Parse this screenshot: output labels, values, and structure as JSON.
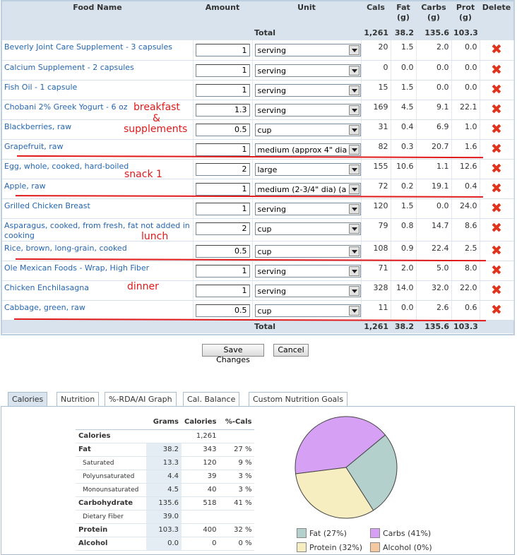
{
  "table": {
    "headers": {
      "food_name": "Food Name",
      "amount": "Amount",
      "unit": "Unit",
      "cals": "Cals",
      "fat": "Fat\n(g)",
      "carbs": "Carbs\n(g)",
      "prot": "Prot\n(g)",
      "delete": "Delete"
    },
    "total_label": "Total",
    "totals": {
      "cals": "1,261",
      "fat": "38.2",
      "carbs": "135.6",
      "prot": "103.3"
    },
    "rows": [
      {
        "name": "Beverly Joint Care Supplement - 3 capsules",
        "amount": "1",
        "unit": "serving",
        "cals": "20",
        "fat": "1.5",
        "carbs": "2.0",
        "prot": "0.0"
      },
      {
        "name": "Calcium Supplement - 2 capsules",
        "amount": "1",
        "unit": "serving",
        "cals": "0",
        "fat": "0.0",
        "carbs": "0.0",
        "prot": "0.0"
      },
      {
        "name": "Fish Oil - 1 capsule",
        "amount": "1",
        "unit": "serving",
        "cals": "15",
        "fat": "1.5",
        "carbs": "0.0",
        "prot": "0.0"
      },
      {
        "name": "Chobani 2% Greek Yogurt - 6 oz",
        "amount": "1.3",
        "unit": "serving",
        "cals": "169",
        "fat": "4.5",
        "carbs": "9.1",
        "prot": "22.1"
      },
      {
        "name": "Blackberries, raw",
        "amount": "0.5",
        "unit": "cup",
        "cals": "31",
        "fat": "0.4",
        "carbs": "6.9",
        "prot": "1.0"
      },
      {
        "name": "Grapefruit, raw",
        "amount": "1",
        "unit": "medium (approx 4\" dia",
        "cals": "82",
        "fat": "0.3",
        "carbs": "20.7",
        "prot": "1.6"
      },
      {
        "name": "Egg, whole, cooked, hard-boiled",
        "amount": "2",
        "unit": "large",
        "cals": "155",
        "fat": "10.6",
        "carbs": "1.1",
        "prot": "12.6"
      },
      {
        "name": "Apple, raw",
        "amount": "1",
        "unit": "medium (2-3/4\" dia) (a",
        "cals": "72",
        "fat": "0.2",
        "carbs": "19.1",
        "prot": "0.4"
      },
      {
        "name": "Grilled Chicken Breast",
        "amount": "1",
        "unit": "serving",
        "cals": "120",
        "fat": "1.5",
        "carbs": "0.0",
        "prot": "24.0"
      },
      {
        "name": "Asparagus, cooked, from fresh, fat not added in cooking",
        "amount": "2",
        "unit": "cup",
        "cals": "79",
        "fat": "0.8",
        "carbs": "14.7",
        "prot": "8.6"
      },
      {
        "name": "Rice, brown, long-grain, cooked",
        "amount": "0.5",
        "unit": "cup",
        "cals": "108",
        "fat": "0.9",
        "carbs": "22.4",
        "prot": "2.5"
      },
      {
        "name": "Ole Mexican Foods - Wrap, High Fiber",
        "amount": "1",
        "unit": "serving",
        "cals": "71",
        "fat": "2.0",
        "carbs": "5.0",
        "prot": "8.0"
      },
      {
        "name": "Chicken Enchilasagna",
        "amount": "1",
        "unit": "serving",
        "cals": "328",
        "fat": "14.0",
        "carbs": "32.0",
        "prot": "22.0"
      },
      {
        "name": "Cabbage, green, raw",
        "amount": "0.5",
        "unit": "cup",
        "cals": "11",
        "fat": "0.0",
        "carbs": "2.6",
        "prot": "0.6"
      }
    ],
    "delete_icon": "close-x-icon"
  },
  "annotations": {
    "breakfast": "breakfast",
    "ampersand": "&",
    "supplements": "supplements",
    "snack": "snack 1",
    "lunch": "lunch",
    "dinner": "dinner",
    "color": "#e01a1a"
  },
  "buttons": {
    "save": "Save Changes",
    "cancel": "Cancel"
  },
  "tabs": [
    "Calories",
    "Nutrition",
    "%-RDA/AI Graph",
    "Cal. Balance",
    "Custom Nutrition Goals"
  ],
  "nutrition": {
    "headers": {
      "grams": "Grams",
      "calories": "Calories",
      "pct": "%-Cals"
    },
    "rows": [
      {
        "label": "Calories",
        "grams": "",
        "calories": "1,261",
        "pct": "",
        "sub": false
      },
      {
        "label": "Fat",
        "grams": "38.2",
        "calories": "343",
        "pct": "27 %",
        "sub": false
      },
      {
        "label": "Saturated",
        "grams": "13.3",
        "calories": "120",
        "pct": "9 %",
        "sub": true
      },
      {
        "label": "Polyunsaturated",
        "grams": "4.4",
        "calories": "39",
        "pct": "3 %",
        "sub": true
      },
      {
        "label": "Monounsaturated",
        "grams": "4.5",
        "calories": "40",
        "pct": "3 %",
        "sub": true
      },
      {
        "label": "Carbohydrate",
        "grams": "135.6",
        "calories": "518",
        "pct": "41 %",
        "sub": false
      },
      {
        "label": "Dietary Fiber",
        "grams": "39.0",
        "calories": "",
        "pct": "",
        "sub": true
      },
      {
        "label": "Protein",
        "grams": "103.3",
        "calories": "400",
        "pct": "32 %",
        "sub": false
      },
      {
        "label": "Alcohol",
        "grams": "0.0",
        "calories": "0",
        "pct": "0 %",
        "sub": false
      }
    ]
  },
  "chart_data": {
    "type": "pie",
    "categories": [
      "Carbs",
      "Fat",
      "Protein",
      "Alcohol"
    ],
    "values": [
      41,
      27,
      32,
      0
    ],
    "colors": [
      "#d6a0f5",
      "#b3d0cc",
      "#f6edc1",
      "#f5c8a0"
    ],
    "legend": [
      "Fat (27%)",
      "Carbs (41%)",
      "Protein (32%)",
      "Alcohol (0%)"
    ]
  }
}
